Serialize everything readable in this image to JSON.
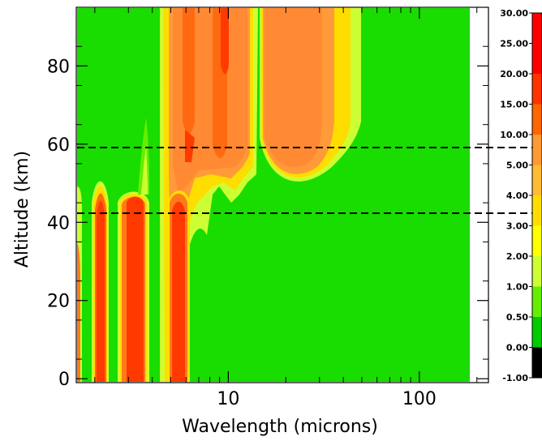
{
  "chart_data": {
    "type": "heatmap",
    "xlabel": "Wavelength (microns)",
    "ylabel": "Altitude (km)",
    "x_scale": "log",
    "x_range_microns": [
      1.6,
      200
    ],
    "xlim": [
      1.6,
      230
    ],
    "ylim": [
      -1,
      95
    ],
    "x_ticks": [
      {
        "value": 10,
        "label": "10"
      },
      {
        "value": 100,
        "label": "100"
      }
    ],
    "y_ticks": [
      {
        "value": 0,
        "label": "0"
      },
      {
        "value": 20,
        "label": "20"
      },
      {
        "value": 40,
        "label": "40"
      },
      {
        "value": 60,
        "label": "60"
      },
      {
        "value": 80,
        "label": "80"
      }
    ],
    "reference_lines_km": [
      60,
      43
    ],
    "colorbar": {
      "levels": [
        "-1.00",
        "0.00",
        "0.50",
        "1.00",
        "2.00",
        "3.00",
        "4.00",
        "5.00",
        "10.00",
        "15.00",
        "20.00",
        "25.00",
        "30.00"
      ],
      "colors": [
        "#000000",
        "#00cc00",
        "#66ee00",
        "#ccff33",
        "#ffff00",
        "#ffdd00",
        "#ffbb33",
        "#ff9933",
        "#ff6600",
        "#ff3300",
        "#ff0000",
        "#ff0000"
      ]
    },
    "regions": [
      {
        "name": "background",
        "level": "0.00",
        "color": "#19dc00"
      },
      {
        "name": "band-1.8um",
        "level": "20.00",
        "color": "#ff3300"
      },
      {
        "name": "band-2.3um",
        "level": "20.00",
        "color": "#ff3300"
      },
      {
        "name": "band-3.3um",
        "level": "20.00",
        "color": "#ff3300"
      },
      {
        "name": "band-6um",
        "level": "15.00",
        "color": "#ff6600"
      },
      {
        "name": "band-6-15um-upper",
        "level": "10.00",
        "color": "#ff8a33"
      },
      {
        "name": "band-20-50um-upper",
        "level": "10.00",
        "color": "#ff8a33"
      }
    ]
  }
}
